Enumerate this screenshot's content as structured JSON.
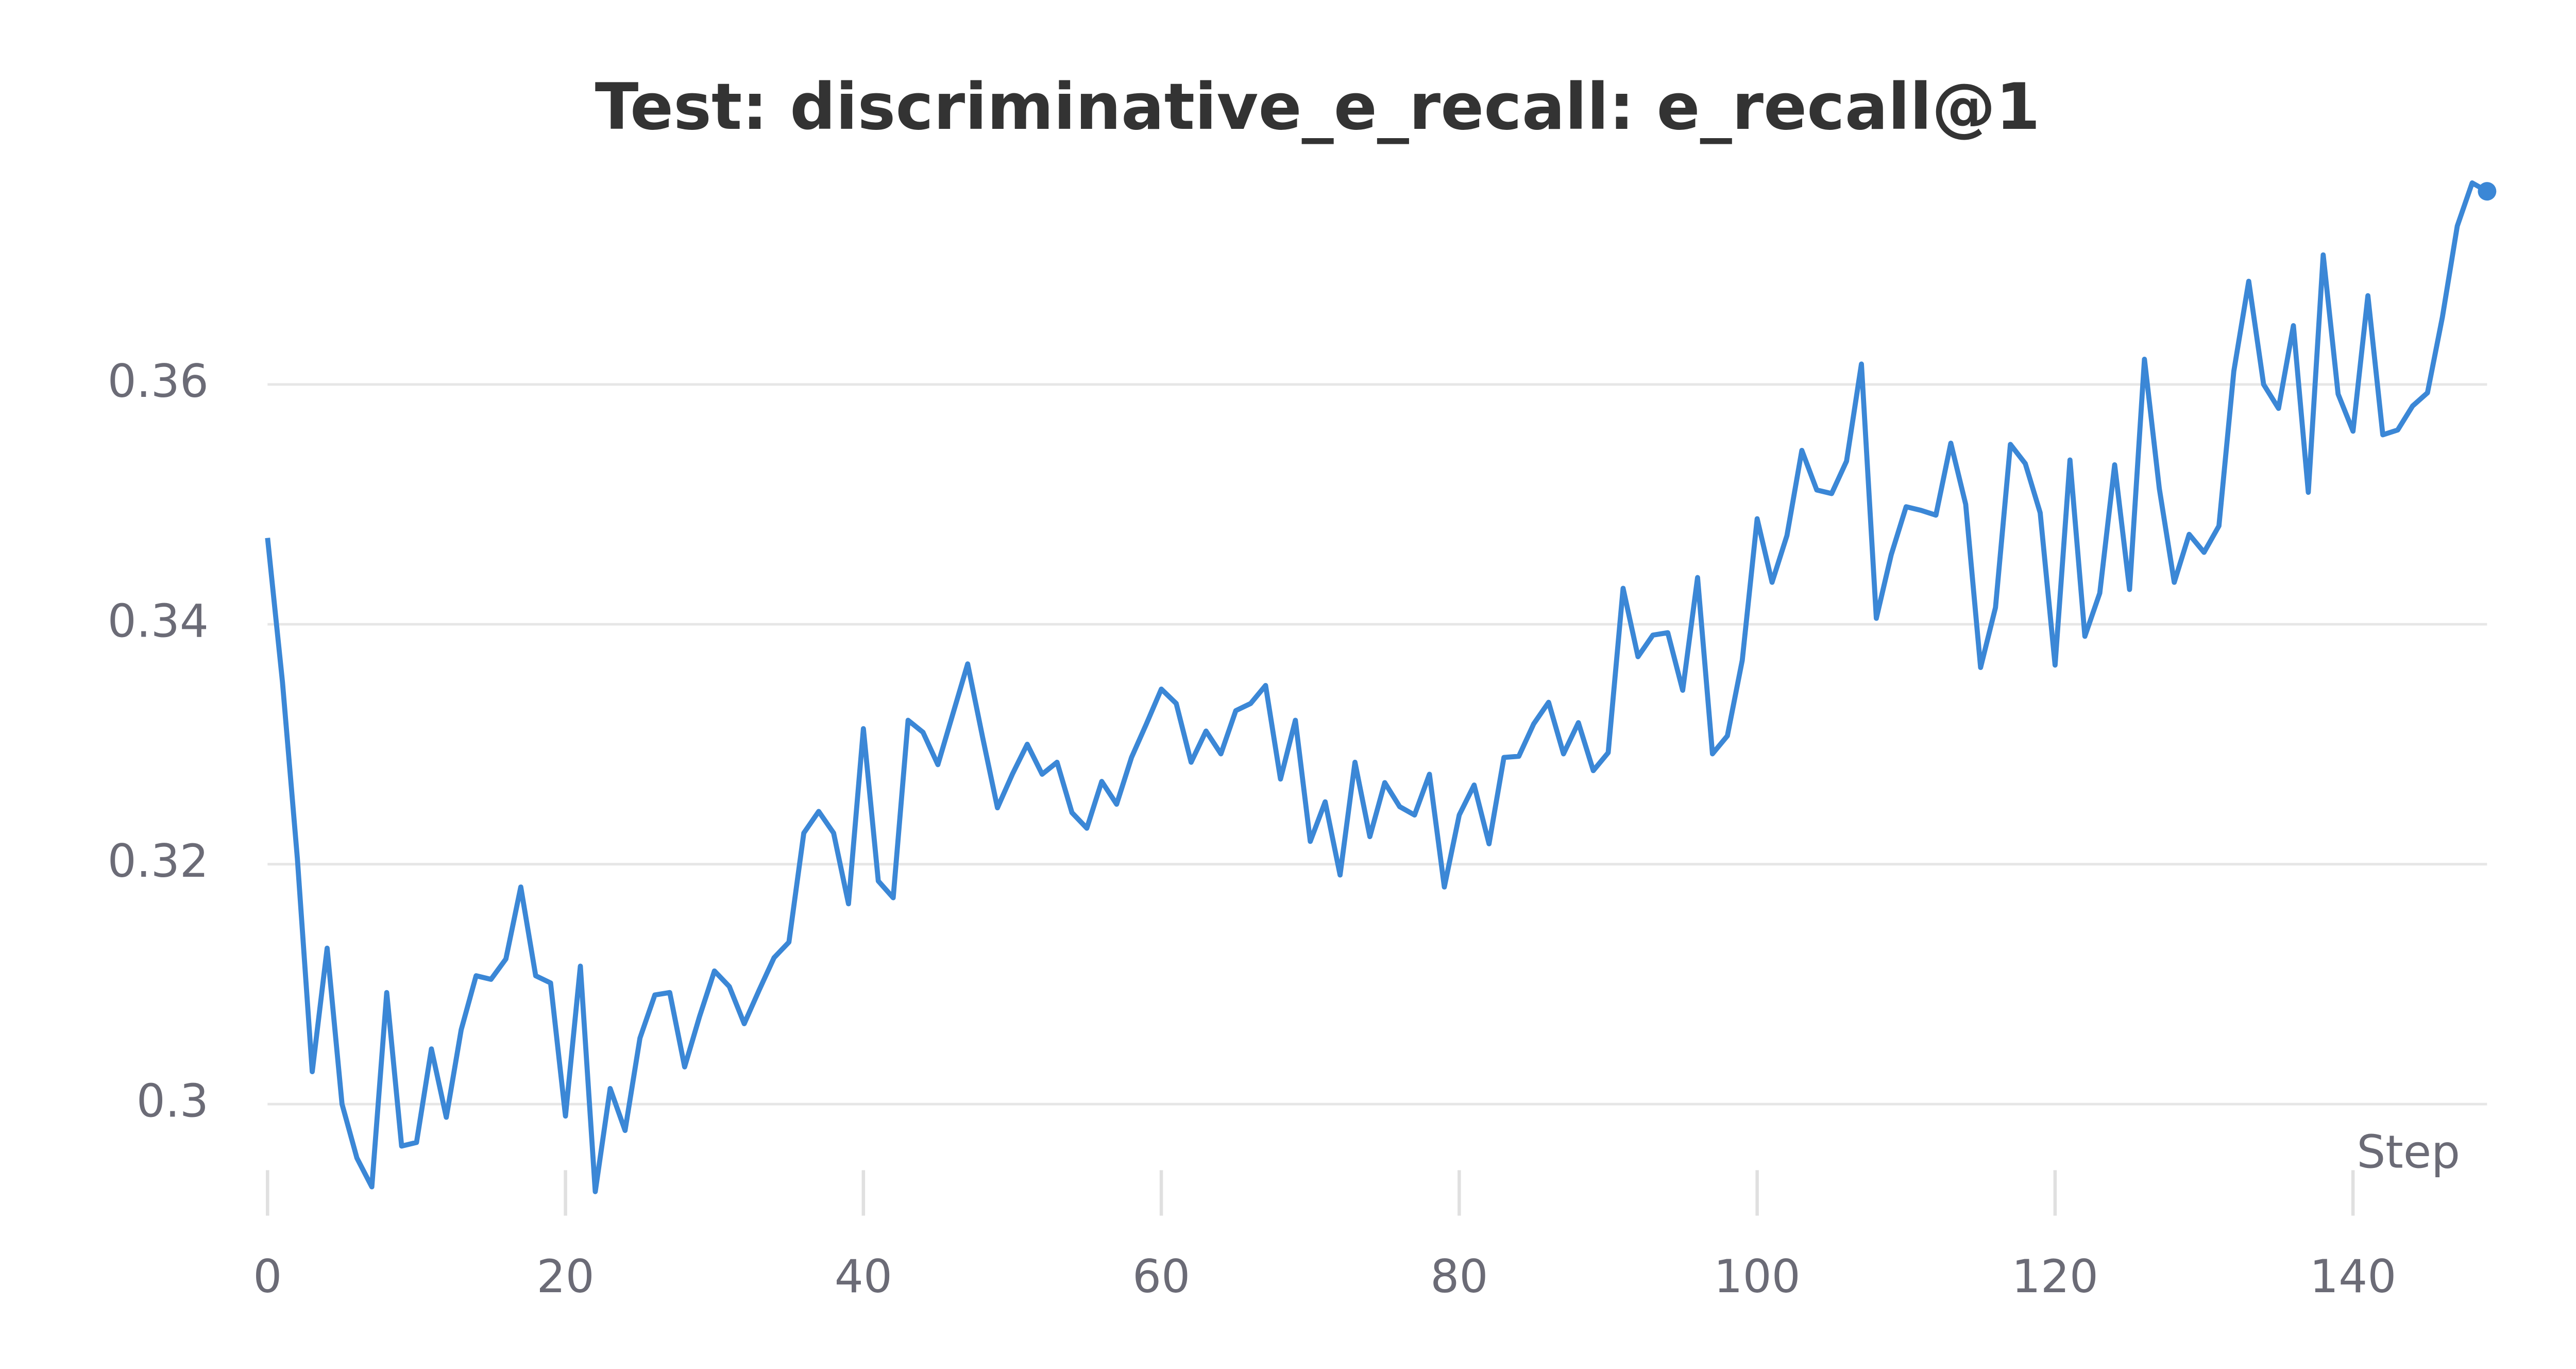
{
  "chart_data": {
    "type": "line",
    "title": "Test: discriminative_e_recall: e_recall@1",
    "x_label": "Step",
    "x": [
      0,
      1,
      2,
      3,
      4,
      5,
      6,
      7,
      8,
      9,
      10,
      11,
      12,
      13,
      14,
      15,
      16,
      17,
      18,
      19,
      20,
      21,
      22,
      23,
      24,
      25,
      26,
      27,
      28,
      29,
      30,
      31,
      32,
      33,
      34,
      35,
      36,
      37,
      38,
      39,
      40,
      41,
      42,
      43,
      44,
      45,
      46,
      47,
      48,
      49,
      50,
      51,
      52,
      53,
      54,
      55,
      56,
      57,
      58,
      59,
      60,
      61,
      62,
      63,
      64,
      65,
      66,
      67,
      68,
      69,
      70,
      71,
      72,
      73,
      74,
      75,
      76,
      77,
      78,
      79,
      80,
      81,
      82,
      83,
      84,
      85,
      86,
      87,
      88,
      89,
      90,
      91,
      92,
      93,
      94,
      95,
      96,
      97,
      98,
      99,
      100,
      101,
      102,
      103,
      104,
      105,
      106,
      107,
      108,
      109,
      110,
      111,
      112,
      113,
      114,
      115,
      116,
      117,
      118,
      119,
      120,
      121,
      122,
      123,
      124,
      125,
      126,
      127,
      128,
      129,
      130,
      131,
      132,
      133,
      134,
      135,
      136,
      137,
      138,
      139,
      140,
      141,
      142,
      143,
      144,
      145,
      146,
      147,
      148,
      149
    ],
    "series": [
      {
        "color": "#3b87d6",
        "values": [
          0.3472,
          0.3352,
          0.3205,
          0.3027,
          0.313,
          0.3,
          0.2955,
          0.2931,
          0.3093,
          0.2965,
          0.2968,
          0.3046,
          0.2989,
          0.3062,
          0.3107,
          0.3104,
          0.3121,
          0.3181,
          0.3107,
          0.3101,
          0.299,
          0.3115,
          0.2927,
          0.3013,
          0.2978,
          0.3055,
          0.3091,
          0.3093,
          0.3031,
          0.3073,
          0.3111,
          0.3098,
          0.3067,
          0.3095,
          0.3122,
          0.3135,
          0.3226,
          0.3244,
          0.3226,
          0.3167,
          0.3313,
          0.3186,
          0.3172,
          0.332,
          0.331,
          0.3283,
          0.3325,
          0.3367,
          0.3306,
          0.3247,
          0.3275,
          0.33,
          0.3275,
          0.3285,
          0.3243,
          0.323,
          0.3269,
          0.325,
          0.3289,
          0.3317,
          0.3346,
          0.3334,
          0.3285,
          0.3311,
          0.3292,
          0.3328,
          0.3334,
          0.3349,
          0.3271,
          0.332,
          0.3219,
          0.3252,
          0.3191,
          0.3285,
          0.3223,
          0.3268,
          0.3248,
          0.3241,
          0.3275,
          0.3181,
          0.3241,
          0.3266,
          0.3217,
          0.3289,
          0.329,
          0.3317,
          0.3335,
          0.3292,
          0.3318,
          0.3278,
          0.3293,
          0.343,
          0.3373,
          0.3391,
          0.3393,
          0.3345,
          0.3439,
          0.3292,
          0.3307,
          0.337,
          0.3488,
          0.3435,
          0.3474,
          0.3545,
          0.3512,
          0.3509,
          0.3536,
          0.3617,
          0.3405,
          0.3458,
          0.3498,
          0.3495,
          0.3491,
          0.3551,
          0.35,
          0.3364,
          0.3414,
          0.355,
          0.3534,
          0.3493,
          0.3366,
          0.3537,
          0.339,
          0.3426,
          0.3533,
          0.3429,
          0.3621,
          0.3513,
          0.3435,
          0.3475,
          0.346,
          0.3482,
          0.3611,
          0.3686,
          0.36,
          0.358,
          0.3649,
          0.351,
          0.3708,
          0.3592,
          0.3561,
          0.3674,
          0.3558,
          0.3562,
          0.3582,
          0.3593,
          0.3656,
          0.3732,
          0.3768,
          0.3761
        ]
      }
    ],
    "xlim": [
      0,
      149
    ],
    "xticks": [
      0,
      20,
      40,
      60,
      80,
      100,
      120,
      140
    ],
    "ylim": [
      0.2907,
      0.378
    ],
    "yticks": [
      0.3,
      0.32,
      0.34,
      0.36
    ],
    "grid": true
  }
}
